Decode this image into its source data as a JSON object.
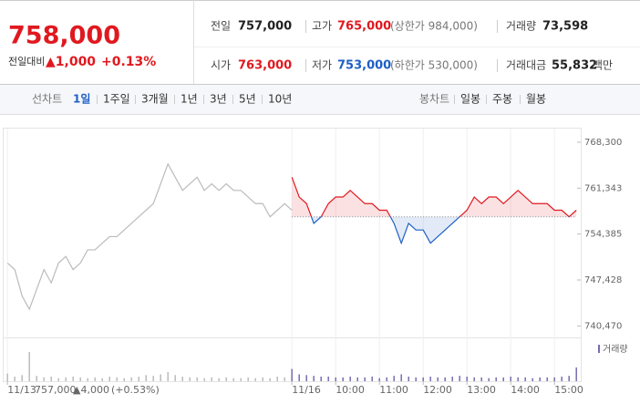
{
  "header": {
    "price": "758,000",
    "change_label": "전일대비",
    "change": "▲1,000",
    "rate": "+0.13%",
    "stats": [
      {
        "label": "전일",
        "value": "757,000"
      },
      {
        "label": "고가",
        "value": "765,000",
        "note": "(상한가 984,000)"
      },
      {
        "label": "거래량",
        "value": "73,598"
      },
      {
        "label": "시가",
        "value": "763,000"
      },
      {
        "label": "저가",
        "value": "753,000",
        "note": "(하한가 530,000)"
      },
      {
        "label": "거래대금",
        "value": "55,832",
        "unit": "백만"
      }
    ]
  },
  "toolbar": {
    "line_label": "선차트",
    "periods": [
      "1일",
      "1주일",
      "3개월",
      "1년",
      "3년",
      "5년",
      "10년"
    ],
    "candle_label": "봉차트",
    "candles": [
      "일봉",
      "주봉",
      "월봉"
    ]
  },
  "chart_data": {
    "type": "line",
    "xlim": [
      -394,
      396
    ],
    "xticks": [
      {
        "value": -390,
        "label": "11/13"
      },
      {
        "value": 0,
        "label": "11/16"
      },
      {
        "value": 60,
        "label": "10:00"
      },
      {
        "value": 120,
        "label": "11:00"
      },
      {
        "value": 180,
        "label": "12:00"
      },
      {
        "value": 240,
        "label": "13:00"
      },
      {
        "value": 300,
        "label": "14:00"
      },
      {
        "value": 360,
        "label": "15:00"
      }
    ],
    "ylim": [
      739000,
      769400
    ],
    "yticks": [
      {
        "value": 768300,
        "label": "768,300"
      },
      {
        "value": 761343,
        "label": "761,343"
      },
      {
        "value": 754385,
        "label": "754,385"
      },
      {
        "value": 747428,
        "label": "747,428"
      },
      {
        "value": 740470,
        "label": "740,470"
      }
    ],
    "reference": {
      "value": 757000,
      "label": "757,000"
    },
    "prev_day": {
      "change": "▲4,000",
      "rate": "(+0.53%)"
    },
    "volume_label": "거래량",
    "volume_lim": [
      0,
      50
    ],
    "series": [
      {
        "color": "#bbbbbb",
        "x": [
          -390,
          -380,
          -370,
          -360,
          -350,
          -340,
          -330,
          -320,
          -310,
          -300,
          -290,
          -280,
          -270,
          -260,
          -250,
          -240,
          -230,
          -220,
          -210,
          -200,
          -190,
          -180,
          -170,
          -160,
          -150,
          -140,
          -130,
          -120,
          -110,
          -100,
          -90,
          -80,
          -70,
          -60,
          -50,
          -40,
          -30,
          -20,
          -10,
          0
        ],
        "values": [
          750000,
          749000,
          745000,
          743000,
          746000,
          749000,
          747000,
          750000,
          751000,
          749000,
          750000,
          752000,
          752000,
          753000,
          754000,
          754000,
          755000,
          756000,
          757000,
          758000,
          759000,
          762000,
          765000,
          763000,
          761000,
          762000,
          763000,
          761000,
          762000,
          761000,
          762000,
          761000,
          761000,
          760000,
          759000,
          759000,
          757000,
          758000,
          759000,
          758000
        ],
        "volumes": [
          10,
          6,
          8,
          38,
          7,
          5,
          6,
          4,
          5,
          6,
          5,
          4,
          5,
          4,
          6,
          5,
          4,
          5,
          6,
          8,
          7,
          9,
          12,
          8,
          6,
          5,
          5,
          4,
          5,
          4,
          5,
          4,
          4,
          5,
          4,
          5,
          4,
          6,
          5,
          7
        ],
        "volume_color": "#bbbbbb"
      },
      {
        "color": "#e0191f",
        "down_color": "#1e5fc4",
        "x": [
          0,
          10,
          20,
          30,
          40,
          50,
          60,
          70,
          80,
          90,
          100,
          110,
          120,
          130,
          140,
          150,
          160,
          170,
          180,
          190,
          200,
          210,
          220,
          230,
          240,
          250,
          260,
          270,
          280,
          290,
          300,
          310,
          320,
          330,
          340,
          350,
          360,
          370,
          380,
          390
        ],
        "values": [
          763000,
          760000,
          759000,
          756000,
          757000,
          759000,
          760000,
          760000,
          761000,
          760000,
          759000,
          759000,
          758000,
          758000,
          756000,
          753000,
          756000,
          755000,
          755000,
          753000,
          754000,
          755000,
          756000,
          757000,
          758000,
          760000,
          759000,
          760000,
          760000,
          759000,
          760000,
          761000,
          760000,
          759000,
          759000,
          759000,
          758000,
          758000,
          757000,
          758000
        ],
        "volumes": [
          16,
          9,
          8,
          7,
          6,
          6,
          5,
          5,
          6,
          5,
          5,
          6,
          4,
          5,
          7,
          9,
          6,
          5,
          5,
          6,
          5,
          5,
          6,
          7,
          6,
          5,
          5,
          4,
          5,
          5,
          6,
          5,
          5,
          4,
          5,
          5,
          5,
          6,
          7,
          18
        ],
        "volume_color": "#7b6bb0"
      }
    ]
  }
}
